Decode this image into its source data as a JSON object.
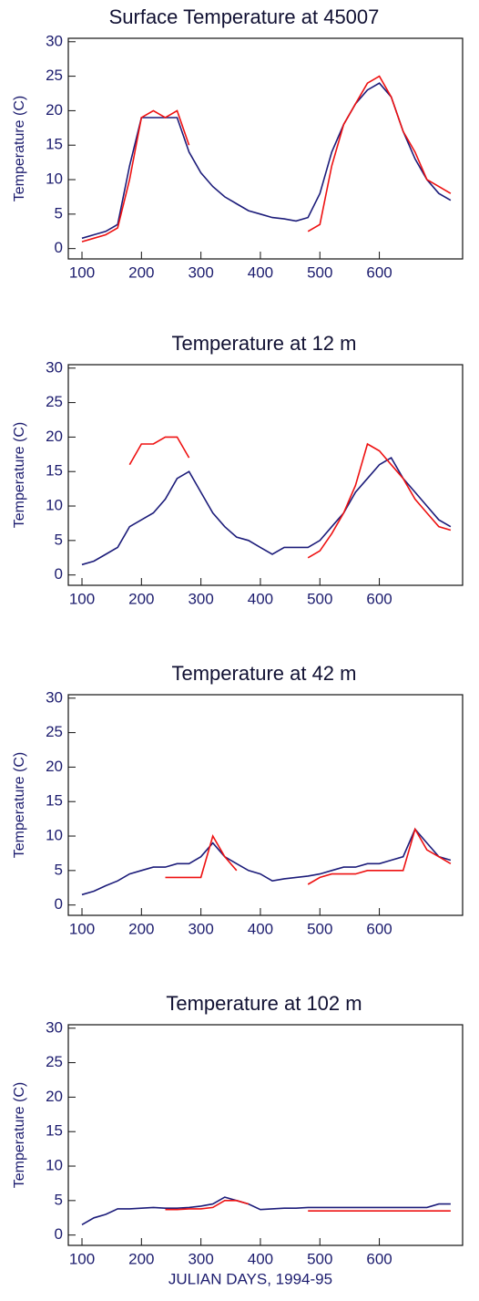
{
  "chart_data": [
    {
      "type": "line",
      "title": "Surface Temperature at 45007",
      "y_label": "Temperature (C)",
      "x": [
        100,
        120,
        140,
        160,
        180,
        200,
        220,
        240,
        260,
        280,
        300,
        320,
        340,
        360,
        380,
        400,
        420,
        440,
        460,
        480,
        500,
        520,
        540,
        560,
        580,
        600,
        620,
        640,
        660,
        680,
        700,
        720
      ],
      "series": [
        {
          "color": "#1c1c7a",
          "values": [
            1.5,
            2,
            2.5,
            3.5,
            12,
            19,
            19,
            19,
            19,
            14,
            11,
            9,
            7.5,
            6.5,
            5.5,
            5,
            4.5,
            4.3,
            4,
            4.5,
            8,
            14,
            18,
            21,
            23,
            24,
            22,
            17,
            13,
            10,
            8,
            7
          ]
        },
        {
          "color": "#ee1111",
          "values": [
            1,
            1.5,
            2,
            3,
            10,
            19,
            20,
            19,
            20,
            15,
            null,
            null,
            null,
            null,
            null,
            null,
            null,
            null,
            null,
            2.5,
            3.5,
            12,
            18,
            21,
            24,
            25,
            22,
            17,
            14,
            10,
            9,
            8
          ]
        }
      ],
      "xlim": [
        77,
        740
      ],
      "xticks": [
        100,
        200,
        300,
        400,
        500,
        600
      ],
      "ylim": [
        -1.5,
        30.5
      ],
      "yticks": [
        0,
        5,
        10,
        15,
        20,
        25,
        30
      ]
    },
    {
      "type": "line",
      "title": "Temperature at 12 m",
      "y_label": "Temperature (C)",
      "x": [
        100,
        120,
        140,
        160,
        180,
        200,
        220,
        240,
        260,
        280,
        300,
        320,
        340,
        360,
        380,
        400,
        420,
        440,
        460,
        480,
        500,
        520,
        540,
        560,
        580,
        600,
        620,
        640,
        660,
        680,
        700,
        720
      ],
      "series": [
        {
          "color": "#1c1c7a",
          "values": [
            1.5,
            2,
            3,
            4,
            7,
            8,
            9,
            11,
            14,
            15,
            12,
            9,
            7,
            5.5,
            5,
            4,
            3,
            4,
            4,
            4,
            5,
            7,
            9,
            12,
            14,
            16,
            17,
            14,
            12,
            10,
            8,
            7
          ]
        },
        {
          "color": "#ee1111",
          "values": [
            null,
            null,
            null,
            null,
            16,
            19,
            19,
            20,
            20,
            17,
            null,
            null,
            null,
            null,
            null,
            null,
            null,
            null,
            null,
            2.5,
            3.5,
            6,
            9,
            13,
            19,
            18,
            16,
            14,
            11,
            9,
            7,
            6.5
          ]
        }
      ],
      "xlim": [
        77,
        740
      ],
      "xticks": [
        100,
        200,
        300,
        400,
        500,
        600
      ],
      "ylim": [
        -1.5,
        30.5
      ],
      "yticks": [
        0,
        5,
        10,
        15,
        20,
        25,
        30
      ]
    },
    {
      "type": "line",
      "title": "Temperature at 42 m",
      "y_label": "Temperature (C)",
      "x": [
        100,
        120,
        140,
        160,
        180,
        200,
        220,
        240,
        260,
        280,
        300,
        320,
        340,
        360,
        380,
        400,
        420,
        440,
        460,
        480,
        500,
        520,
        540,
        560,
        580,
        600,
        620,
        640,
        660,
        680,
        700,
        720
      ],
      "series": [
        {
          "color": "#1c1c7a",
          "values": [
            1.5,
            2,
            2.8,
            3.5,
            4.5,
            5,
            5.5,
            5.5,
            6,
            6,
            7,
            9,
            7,
            6,
            5,
            4.5,
            3.5,
            3.8,
            4,
            4.2,
            4.5,
            5,
            5.5,
            5.5,
            6,
            6,
            6.5,
            7,
            11,
            9,
            7,
            6.5
          ]
        },
        {
          "color": "#ee1111",
          "values": [
            null,
            null,
            null,
            null,
            null,
            null,
            null,
            4,
            4,
            4,
            4,
            10,
            7,
            5,
            null,
            null,
            null,
            null,
            null,
            3,
            4,
            4.5,
            4.5,
            4.5,
            5,
            5,
            5,
            5,
            11,
            8,
            7,
            6
          ]
        }
      ],
      "xlim": [
        77,
        740
      ],
      "xticks": [
        100,
        200,
        300,
        400,
        500,
        600
      ],
      "ylim": [
        -1.5,
        30.5
      ],
      "yticks": [
        0,
        5,
        10,
        15,
        20,
        25,
        30
      ]
    },
    {
      "type": "line",
      "title": "Temperature at 102 m",
      "y_label": "Temperature (C)",
      "x_label": "JULIAN DAYS, 1994-95",
      "x": [
        100,
        120,
        140,
        160,
        180,
        200,
        220,
        240,
        260,
        280,
        300,
        320,
        340,
        360,
        380,
        400,
        420,
        440,
        460,
        480,
        500,
        520,
        540,
        560,
        580,
        600,
        620,
        640,
        660,
        680,
        700,
        720
      ],
      "series": [
        {
          "color": "#1c1c7a",
          "values": [
            1.5,
            2.5,
            3,
            3.8,
            3.8,
            3.9,
            4,
            3.9,
            3.9,
            4,
            4.2,
            4.5,
            5.5,
            5,
            4.5,
            3.7,
            3.8,
            3.9,
            3.9,
            4,
            4,
            4,
            4,
            4,
            4,
            4,
            4,
            4,
            4,
            4,
            4.5,
            4.5
          ]
        },
        {
          "color": "#ee1111",
          "values": [
            null,
            null,
            null,
            null,
            null,
            null,
            null,
            3.7,
            3.7,
            3.8,
            3.8,
            4,
            5,
            5,
            4.5,
            null,
            null,
            null,
            null,
            3.5,
            3.5,
            3.5,
            3.5,
            3.5,
            3.5,
            3.5,
            3.5,
            3.5,
            3.5,
            3.5,
            3.5,
            3.5
          ]
        }
      ],
      "xlim": [
        77,
        740
      ],
      "xticks": [
        100,
        200,
        300,
        400,
        500,
        600
      ],
      "ylim": [
        -1.5,
        30.5
      ],
      "yticks": [
        0,
        5,
        10,
        15,
        20,
        25,
        30
      ]
    }
  ]
}
